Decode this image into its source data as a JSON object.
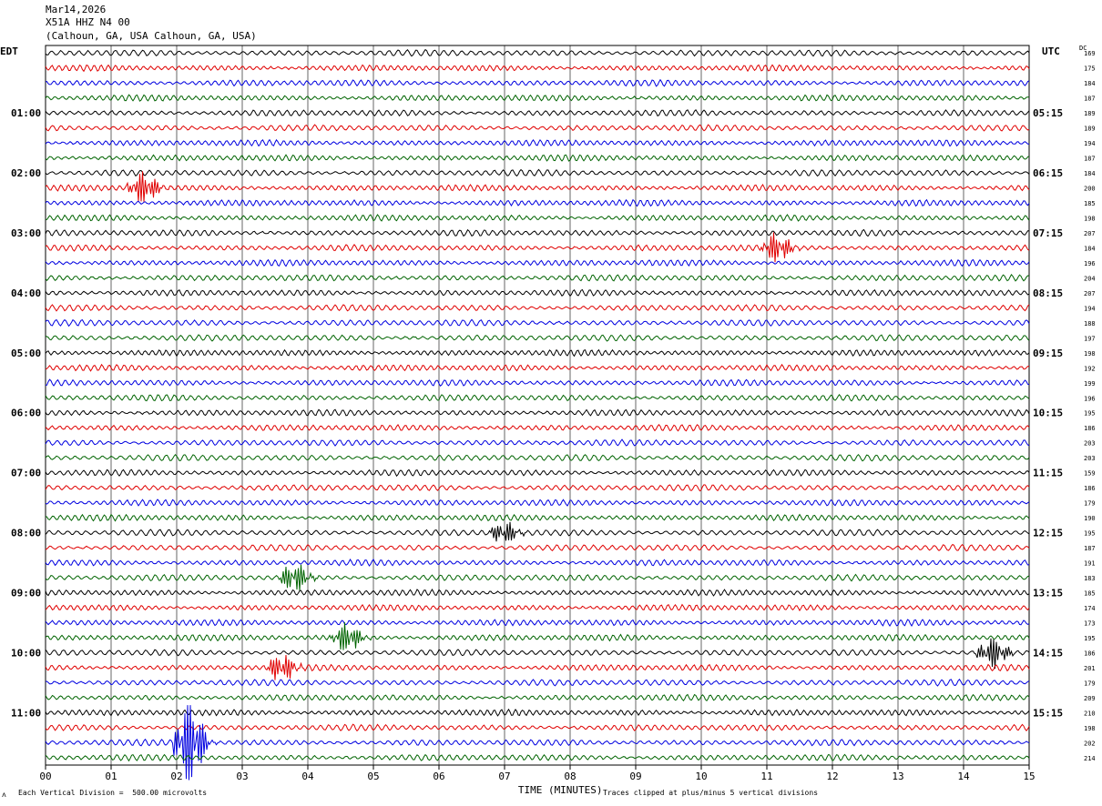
{
  "header": {
    "date": "Mar14,2026",
    "station": "X51A HHZ N4 00",
    "location": "(Calhoun, GA, USA Calhoun, GA, USA)"
  },
  "left_label": "EDT",
  "right_label": "UTC",
  "dc_label": "DC",
  "footer": {
    "scale_note": "Each Vertical Division =  500.00 microvolts",
    "clip_note": "Traces clipped at plus/minus 5 vertical divisions"
  },
  "colors": {
    "trace_cycle": [
      "#000000",
      "#e00000",
      "#0000e0",
      "#006400"
    ],
    "grid": "#000000",
    "background": "#ffffff"
  },
  "chart_data": {
    "type": "line",
    "title": "",
    "xlabel": "TIME (MINUTES)",
    "ylabel": "",
    "xlim": [
      0,
      15
    ],
    "x_ticks": [
      "00",
      "01",
      "02",
      "03",
      "04",
      "05",
      "06",
      "07",
      "08",
      "09",
      "10",
      "11",
      "12",
      "13",
      "14",
      "15"
    ],
    "trace_count": 48,
    "minutes_per_trace": 15,
    "left_hour_labels": [
      "01:00",
      "02:00",
      "03:00",
      "04:00",
      "05:00",
      "06:00",
      "07:00",
      "08:00",
      "09:00",
      "10:00",
      "11:00"
    ],
    "right_hour_labels": [
      "05:15",
      "06:15",
      "07:15",
      "08:15",
      "09:15",
      "10:15",
      "11:15",
      "12:15",
      "13:15",
      "14:15",
      "15:15"
    ],
    "dc_offsets": [
      "169",
      "175",
      "184",
      "187",
      "189",
      "189",
      "194",
      "187",
      "184",
      "200",
      "185",
      "198",
      "207",
      "184",
      "196",
      "204",
      "207",
      "194",
      "188",
      "197",
      "198",
      "192",
      "199",
      "196",
      "195",
      "186",
      "203",
      "203",
      "159",
      "186",
      "179",
      "190",
      "195",
      "187",
      "191",
      "183",
      "185",
      "174",
      "173",
      "195",
      "186",
      "201",
      "179",
      "209",
      "210",
      "198",
      "202",
      "214"
    ],
    "events": [
      {
        "trace": 9,
        "minute": 1.4,
        "amplitude": 1.8
      },
      {
        "trace": 13,
        "minute": 11.05,
        "amplitude": 1.6
      },
      {
        "trace": 32,
        "minute": 6.9,
        "amplitude": 1.2
      },
      {
        "trace": 35,
        "minute": 3.7,
        "amplitude": 1.6
      },
      {
        "trace": 39,
        "minute": 4.5,
        "amplitude": 1.6
      },
      {
        "trace": 40,
        "minute": 14.35,
        "amplitude": 1.7
      },
      {
        "trace": 41,
        "minute": 3.5,
        "amplitude": 1.5
      },
      {
        "trace": 46,
        "minute": 2.1,
        "amplitude": 5.0
      }
    ]
  }
}
